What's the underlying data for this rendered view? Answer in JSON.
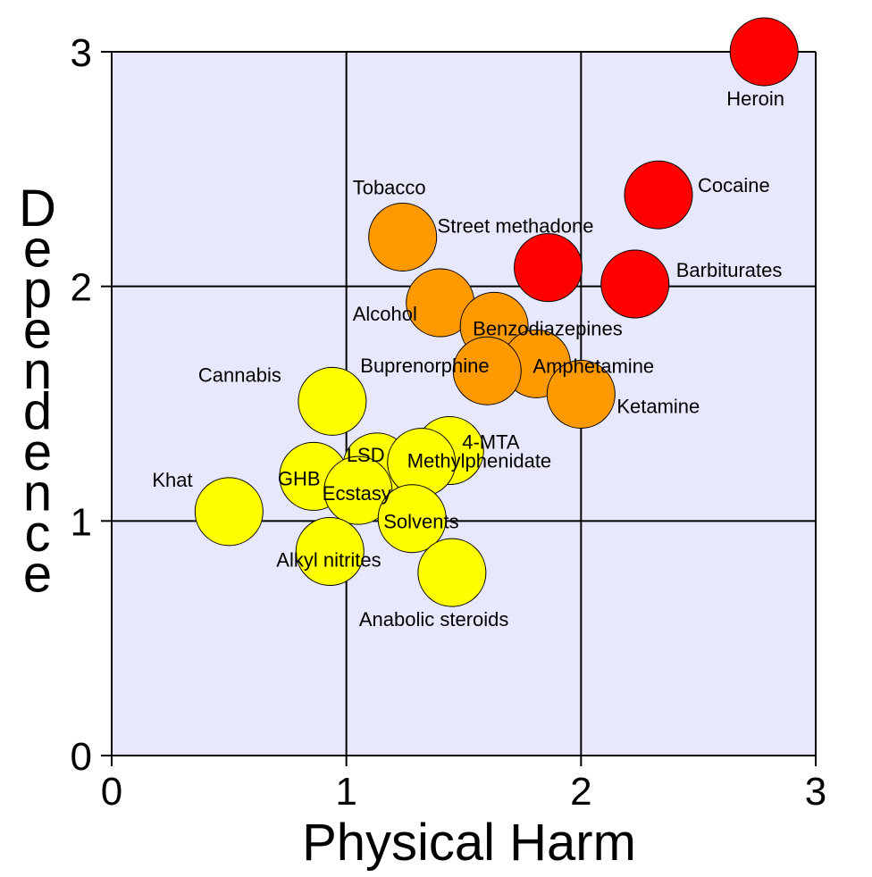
{
  "chart_data": {
    "type": "scatter",
    "xlabel": "Physical Harm",
    "ylabel": "Dependence",
    "xlim": [
      0,
      3
    ],
    "ylim": [
      0,
      3
    ],
    "xticks": [
      "0",
      "1",
      "2",
      "3"
    ],
    "yticks": [
      "0",
      "1",
      "2",
      "3"
    ],
    "grid": true,
    "colors": {
      "plot_bg": "#e8e8fc",
      "high": "#ff0000",
      "medium": "#ff9900",
      "low": "#ffff00"
    },
    "points": [
      {
        "label": "Heroin",
        "x": 2.78,
        "y": 3.0,
        "group": "high"
      },
      {
        "label": "Cocaine",
        "x": 2.33,
        "y": 2.39,
        "group": "high"
      },
      {
        "label": "Street methadone",
        "x": 1.86,
        "y": 2.08,
        "group": "high"
      },
      {
        "label": "Barbiturates",
        "x": 2.23,
        "y": 2.01,
        "group": "high"
      },
      {
        "label": "Tobacco",
        "x": 1.24,
        "y": 2.21,
        "group": "medium"
      },
      {
        "label": "Alcohol",
        "x": 1.4,
        "y": 1.93,
        "group": "medium"
      },
      {
        "label": "Benzodiazepines",
        "x": 1.63,
        "y": 1.83,
        "group": "medium"
      },
      {
        "label": "Amphetamine",
        "x": 1.81,
        "y": 1.67,
        "group": "medium"
      },
      {
        "label": "Buprenorphine",
        "x": 1.6,
        "y": 1.64,
        "group": "medium"
      },
      {
        "label": "Ketamine",
        "x": 2.0,
        "y": 1.54,
        "group": "medium"
      },
      {
        "label": "Cannabis",
        "x": 0.94,
        "y": 1.51,
        "group": "low"
      },
      {
        "label": "4-MTA",
        "x": 1.44,
        "y": 1.3,
        "group": "low"
      },
      {
        "label": "LSD",
        "x": 1.13,
        "y": 1.23,
        "group": "low"
      },
      {
        "label": "Methylphenidate",
        "x": 1.32,
        "y": 1.25,
        "group": "low"
      },
      {
        "label": "GHB",
        "x": 0.86,
        "y": 1.19,
        "group": "low"
      },
      {
        "label": "Ecstasy",
        "x": 1.05,
        "y": 1.13,
        "group": "low"
      },
      {
        "label": "Khat",
        "x": 0.5,
        "y": 1.04,
        "group": "low"
      },
      {
        "label": "Solvents",
        "x": 1.28,
        "y": 1.01,
        "group": "low"
      },
      {
        "label": "Alkyl nitrites",
        "x": 0.93,
        "y": 0.87,
        "group": "low"
      },
      {
        "label": "Anabolic steroids",
        "x": 1.45,
        "y": 0.78,
        "group": "low"
      }
    ]
  }
}
